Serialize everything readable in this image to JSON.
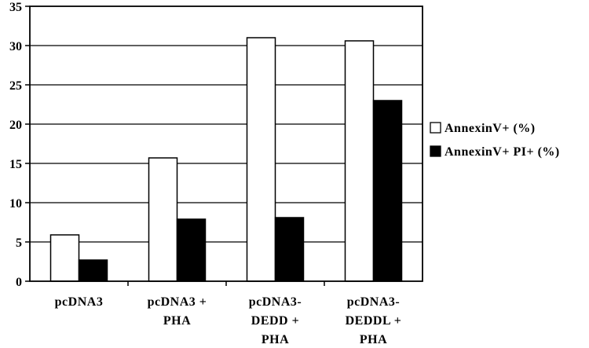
{
  "chart_data": {
    "type": "bar",
    "categories": [
      [
        "pcDNA3"
      ],
      [
        "pcDNA3 +",
        "PHA"
      ],
      [
        "pcDNA3-",
        "DEDD +",
        "PHA"
      ],
      [
        "pcDNA3-",
        "DEDDL +",
        "PHA"
      ]
    ],
    "series": [
      {
        "name": "AnnexinV+ (%)",
        "values": [
          5.9,
          15.7,
          31.0,
          30.6
        ],
        "color": "#ffffff"
      },
      {
        "name": "AnnexinV+ PI+ (%)",
        "values": [
          2.7,
          7.9,
          8.1,
          23.0
        ],
        "color": "#000000"
      }
    ],
    "ylim": [
      0,
      35
    ],
    "yticks": [
      0,
      5,
      10,
      15,
      20,
      25,
      30,
      35
    ],
    "grid": true,
    "legend": "right",
    "title": "",
    "xlabel": "",
    "ylabel": ""
  }
}
